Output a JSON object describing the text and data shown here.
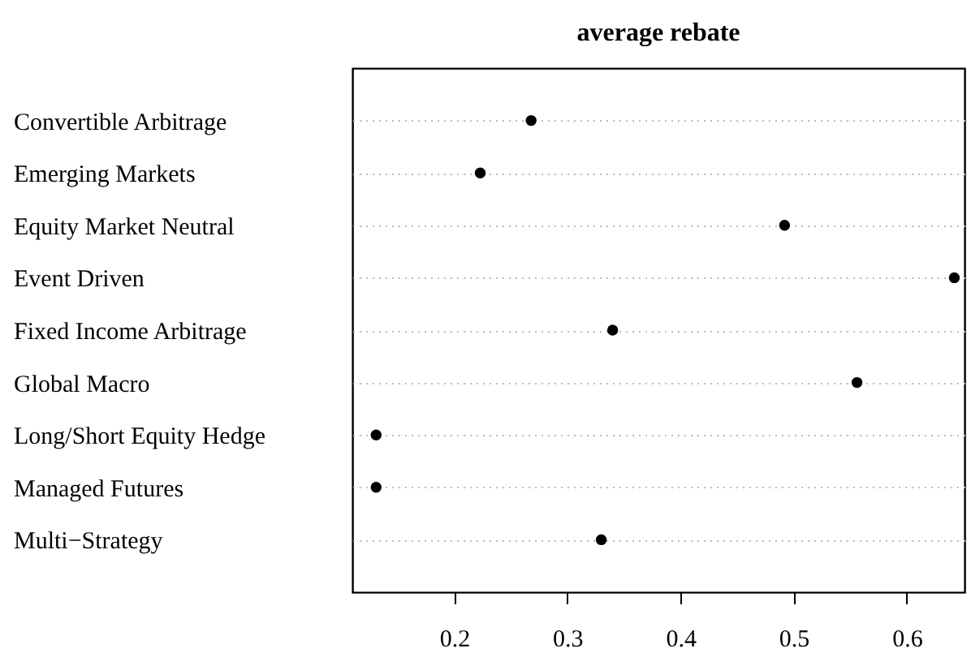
{
  "chart_data": {
    "type": "scatter",
    "title": "average rebate",
    "orientation": "horizontal",
    "categories": [
      "Convertible Arbitrage",
      "Emerging Markets",
      "Equity Market Neutral",
      "Event Driven",
      "Fixed Income Arbitrage",
      "Global Macro",
      "Long/Short Equity Hedge",
      "Managed Futures",
      "Multi−Strategy"
    ],
    "values": [
      0.268,
      0.223,
      0.492,
      0.642,
      0.34,
      0.556,
      0.131,
      0.131,
      0.33
    ],
    "color": "#000000",
    "marker": "circle",
    "xlim": [
      0.11,
      0.651
    ],
    "xticks": [
      0.2,
      0.3,
      0.4,
      0.5,
      0.6
    ],
    "grid": "y"
  }
}
